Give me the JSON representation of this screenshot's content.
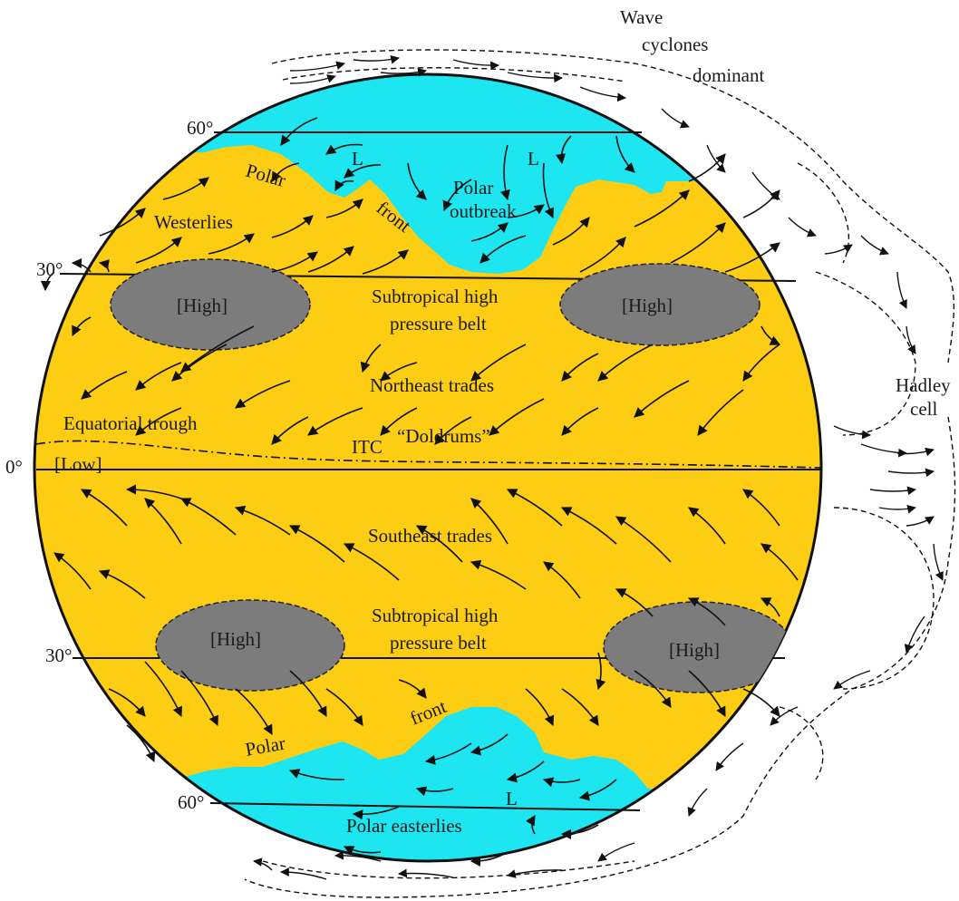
{
  "colors": {
    "subtropic_band": "#fccd13",
    "polar_region": "#1ee6f0",
    "high_cell": "#7c7c7c",
    "outline": "#111111",
    "arrow": "#111111",
    "background": "#ffffff"
  },
  "latitudes": {
    "north_60": "60°",
    "north_30": "30°",
    "equator": "0°",
    "south_30": "30°",
    "south_60": "60°"
  },
  "labels": {
    "wave_cyclones_1": "Wave",
    "wave_cyclones_2": "cyclones",
    "wave_cyclones_3": "dominant",
    "hadley_1": "Hadley",
    "hadley_2": "cell",
    "polar_north": "Polar",
    "front_north": "front",
    "polar_outbreak_1": "Polar",
    "polar_outbreak_2": "outbreak",
    "westerlies": "Westerlies",
    "low_l_1": "L",
    "low_l_2": "L",
    "high_nw": "[High]",
    "high_ne": "[High]",
    "high_sw": "[High]",
    "high_se": "[High]",
    "subtropical_north_1": "Subtropical high",
    "subtropical_north_2": "pressure belt",
    "northeast_trades": "Northeast trades",
    "equatorial_trough": "Equatorial trough",
    "itc": "ITC",
    "doldrums": "“Doldrums”",
    "low_equator": "[Low]",
    "southeast_trades": "Southeast trades",
    "subtropical_south_1": "Subtropical high",
    "subtropical_south_2": "pressure belt",
    "front_south": "front",
    "polar_south": "Polar",
    "low_l_south": "L",
    "polar_easterlies": "Polar easterlies"
  }
}
